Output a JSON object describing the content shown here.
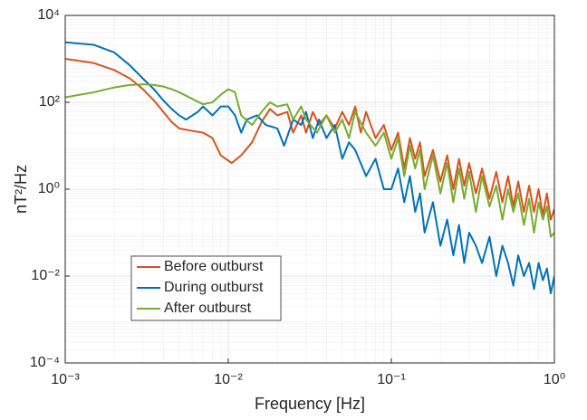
{
  "chart_data": {
    "type": "line",
    "xlabel": "Frequency [Hz]",
    "ylabel": "nT²/Hz",
    "xscale": "log",
    "yscale": "log",
    "grid": true,
    "minor_grid": true,
    "legend_position": "lower left",
    "xlim": [
      0.001,
      1
    ],
    "ylim": [
      0.0001,
      10000
    ],
    "xticks": [
      {
        "value": 0.001,
        "label": "10⁻³"
      },
      {
        "value": 0.01,
        "label": "10⁻²"
      },
      {
        "value": 0.1,
        "label": "10⁻¹"
      },
      {
        "value": 1,
        "label": "10⁰"
      }
    ],
    "yticks": [
      {
        "value": 0.0001,
        "label": "10⁻⁴"
      },
      {
        "value": 0.01,
        "label": "10⁻²"
      },
      {
        "value": 1,
        "label": "10⁰"
      },
      {
        "value": 100,
        "label": "10²"
      },
      {
        "value": 10000,
        "label": "10⁴"
      }
    ],
    "series": [
      {
        "name": "Before outburst",
        "color": "#D95319",
        "x": [
          0.001,
          0.0015,
          0.002,
          0.0025,
          0.003,
          0.0035,
          0.004,
          0.0045,
          0.005,
          0.006,
          0.007,
          0.008,
          0.009,
          0.0105,
          0.012,
          0.014,
          0.016,
          0.018,
          0.02,
          0.023,
          0.025,
          0.028,
          0.03,
          0.033,
          0.036,
          0.04,
          0.045,
          0.05,
          0.055,
          0.06,
          0.065,
          0.07,
          0.08,
          0.09,
          0.1,
          0.11,
          0.12,
          0.13,
          0.14,
          0.15,
          0.16,
          0.18,
          0.2,
          0.22,
          0.24,
          0.26,
          0.28,
          0.3,
          0.33,
          0.36,
          0.4,
          0.44,
          0.48,
          0.52,
          0.56,
          0.6,
          0.65,
          0.7,
          0.75,
          0.8,
          0.85,
          0.9,
          0.95,
          1
        ],
        "values": [
          1000,
          800,
          550,
          350,
          200,
          110,
          60,
          35,
          25,
          22,
          20,
          15,
          6,
          4,
          6,
          12,
          35,
          70,
          50,
          60,
          20,
          50,
          20,
          60,
          30,
          50,
          25,
          60,
          30,
          80,
          20,
          60,
          15,
          30,
          8,
          20,
          3,
          15,
          5,
          12,
          2,
          8,
          1.5,
          6,
          1,
          5,
          1.2,
          4,
          0.8,
          3,
          0.6,
          2.5,
          0.5,
          2,
          0.4,
          1.5,
          0.3,
          1.2,
          0.3,
          1,
          0.25,
          0.8,
          0.2,
          0.35
        ]
      },
      {
        "name": "During outburst",
        "color": "#0072BD",
        "x": [
          0.001,
          0.0015,
          0.002,
          0.0025,
          0.003,
          0.0035,
          0.004,
          0.0045,
          0.005,
          0.0055,
          0.0065,
          0.007,
          0.008,
          0.009,
          0.01,
          0.011,
          0.012,
          0.013,
          0.015,
          0.017,
          0.02,
          0.022,
          0.025,
          0.028,
          0.03,
          0.033,
          0.036,
          0.04,
          0.045,
          0.05,
          0.055,
          0.06,
          0.07,
          0.08,
          0.09,
          0.1,
          0.11,
          0.12,
          0.13,
          0.14,
          0.15,
          0.16,
          0.18,
          0.2,
          0.22,
          0.24,
          0.26,
          0.28,
          0.3,
          0.33,
          0.36,
          0.4,
          0.44,
          0.48,
          0.52,
          0.56,
          0.6,
          0.65,
          0.7,
          0.75,
          0.8,
          0.85,
          0.9,
          0.95,
          1
        ],
        "values": [
          2400,
          2100,
          1400,
          700,
          350,
          200,
          110,
          70,
          50,
          40,
          60,
          80,
          50,
          80,
          80,
          50,
          20,
          40,
          50,
          30,
          25,
          10,
          40,
          30,
          60,
          15,
          40,
          15,
          30,
          5,
          12,
          8,
          2,
          5,
          1,
          1,
          3,
          0.5,
          2,
          0.3,
          0.8,
          0.1,
          0.5,
          0.05,
          0.2,
          0.03,
          0.15,
          0.02,
          0.1,
          0.05,
          0.02,
          0.08,
          0.01,
          0.05,
          0.02,
          0.006,
          0.03,
          0.01,
          0.02,
          0.005,
          0.02,
          0.008,
          0.015,
          0.004,
          0.01
        ]
      },
      {
        "name": "After outburst",
        "color": "#77AC30",
        "x": [
          0.001,
          0.0015,
          0.002,
          0.0025,
          0.003,
          0.0035,
          0.004,
          0.0045,
          0.005,
          0.006,
          0.007,
          0.008,
          0.009,
          0.01,
          0.011,
          0.012,
          0.014,
          0.016,
          0.018,
          0.02,
          0.023,
          0.025,
          0.028,
          0.03,
          0.035,
          0.04,
          0.045,
          0.05,
          0.055,
          0.06,
          0.07,
          0.08,
          0.09,
          0.1,
          0.11,
          0.12,
          0.13,
          0.14,
          0.15,
          0.16,
          0.18,
          0.2,
          0.22,
          0.24,
          0.26,
          0.28,
          0.3,
          0.33,
          0.36,
          0.4,
          0.44,
          0.48,
          0.52,
          0.56,
          0.6,
          0.65,
          0.7,
          0.75,
          0.8,
          0.85,
          0.9,
          0.95,
          1
        ],
        "values": [
          130,
          170,
          220,
          250,
          260,
          250,
          230,
          200,
          170,
          120,
          90,
          100,
          150,
          200,
          170,
          50,
          30,
          60,
          100,
          80,
          90,
          40,
          80,
          40,
          20,
          50,
          20,
          40,
          15,
          60,
          20,
          10,
          20,
          5,
          15,
          2,
          10,
          3,
          8,
          1,
          6,
          0.8,
          4,
          0.5,
          3,
          0.6,
          2.5,
          0.3,
          2,
          0.4,
          1.2,
          0.2,
          1,
          0.3,
          0.8,
          0.15,
          0.6,
          0.1,
          0.5,
          0.2,
          0.4,
          0.08,
          0.1
        ]
      }
    ]
  }
}
